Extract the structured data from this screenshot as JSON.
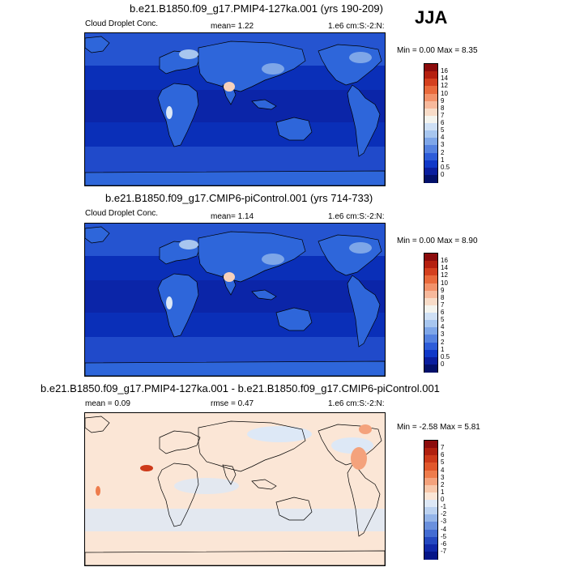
{
  "season": "JJA",
  "panels": [
    {
      "id": "p1",
      "title": "b.e21.B1850.f09_g17.PMIP4-127ka.001 (yrs 190-209)",
      "left_label": "Cloud Droplet Conc.",
      "center_label": "mean=   1.22",
      "right_label": "1.e6 cm:S:-2:N:",
      "minmax": "Min =   0.00 Max =   8.35",
      "colorbar_labels": [
        "16",
        "14",
        "12",
        "10",
        "9",
        "8",
        "7",
        "6",
        "5",
        "4",
        "3",
        "2",
        "1",
        "0.5",
        "0"
      ],
      "colorbar_colors": [
        "#8c0c0c",
        "#b5200f",
        "#d4401e",
        "#e96a3c",
        "#f2926a",
        "#f7b99c",
        "#f8dcc8",
        "#f4f4ee",
        "#cfe0f5",
        "#a7c6ef",
        "#7ea6e8",
        "#5582e0",
        "#2d5cd8",
        "#1038c8",
        "#0a1e9e",
        "#03106a"
      ],
      "map_style": "abs"
    },
    {
      "id": "p2",
      "title": "b.e21.B1850.f09_g17.CMIP6-piControl.001 (yrs 714-733)",
      "left_label": "Cloud Droplet Conc.",
      "center_label": "mean=   1.14",
      "right_label": "1.e6 cm:S:-2:N:",
      "minmax": "Min =   0.00 Max =   8.90",
      "colorbar_labels": [
        "16",
        "14",
        "12",
        "10",
        "9",
        "8",
        "7",
        "6",
        "5",
        "4",
        "3",
        "2",
        "1",
        "0.5",
        "0"
      ],
      "colorbar_colors": [
        "#8c0c0c",
        "#b5200f",
        "#d4401e",
        "#e96a3c",
        "#f2926a",
        "#f7b99c",
        "#f8dcc8",
        "#f4f4ee",
        "#cfe0f5",
        "#a7c6ef",
        "#7ea6e8",
        "#5582e0",
        "#2d5cd8",
        "#1038c8",
        "#0a1e9e",
        "#03106a"
      ],
      "map_style": "abs"
    },
    {
      "id": "p3",
      "title": "b.e21.B1850.f09_g17.PMIP4-127ka.001 - b.e21.B1850.f09_g17.CMIP6-piControl.001",
      "left_label": "mean =   0.09",
      "center_label": "rmse =    0.47",
      "right_label": "1.e6 cm:S:-2:N:",
      "minmax": "Min =  -2.58 Max =   5.81",
      "colorbar_labels": [
        "7",
        "6",
        "5",
        "4",
        "3",
        "2",
        "1",
        "0",
        "-1",
        "-2",
        "-3",
        "-4",
        "-5",
        "-6",
        "-7"
      ],
      "colorbar_colors": [
        "#8c0c0c",
        "#b0200e",
        "#cd3a1a",
        "#e1582c",
        "#ee7c4c",
        "#f4a27c",
        "#f8c8ab",
        "#fbe6d6",
        "#dde8f6",
        "#bcd2f0",
        "#94b4e8",
        "#6a90dd",
        "#436cd2",
        "#2448c0",
        "#1028a8",
        "#061688"
      ],
      "map_style": "diff"
    }
  ]
}
